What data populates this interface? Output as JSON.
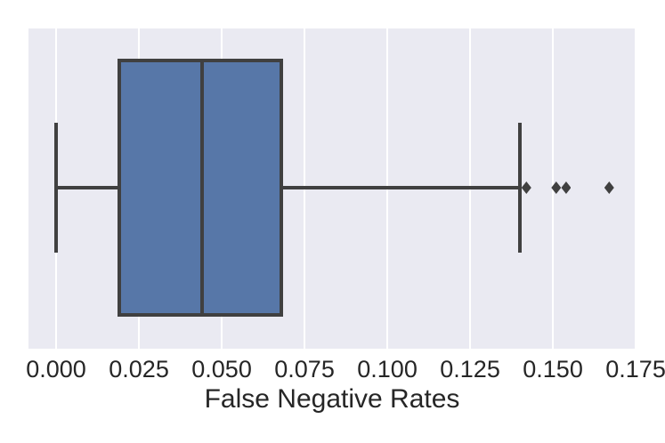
{
  "figure": {
    "background_color": "#ffffff",
    "axes_background_color": "#eaeaf2",
    "grid_color": "#ffffff",
    "text_color": "#262626"
  },
  "chart_data": {
    "type": "boxplot",
    "orientation": "horizontal",
    "title": "",
    "xlabel": "False Negative Rates",
    "ylabel": "",
    "grid": true,
    "xlim": [
      -0.00835,
      0.17525
    ],
    "x_ticks": [
      0.0,
      0.025,
      0.05,
      0.075,
      0.1,
      0.125,
      0.15,
      0.175
    ],
    "x_tick_labels": [
      "0.000",
      "0.025",
      "0.050",
      "0.075",
      "0.100",
      "0.125",
      "0.150",
      "0.175"
    ],
    "series": [
      {
        "name": "False Negative Rates",
        "whisker_min": 0.0,
        "q1": 0.019,
        "median": 0.044,
        "q3": 0.068,
        "whisker_max": 0.14,
        "outliers": [
          0.142,
          0.151,
          0.154,
          0.167
        ],
        "box_fill_color": "#5777a8",
        "line_color": "#404040"
      }
    ]
  }
}
